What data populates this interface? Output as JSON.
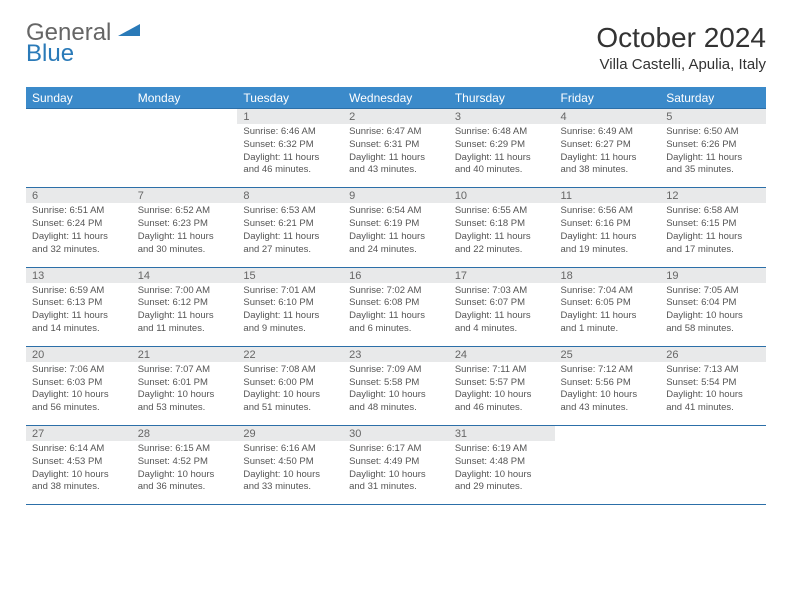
{
  "brand": {
    "general": "General",
    "blue": "Blue"
  },
  "title": "October 2024",
  "location": "Villa Castelli, Apulia, Italy",
  "colors": {
    "header_bg": "#3b8aca",
    "header_text": "#ffffff",
    "rule": "#2c6fa8",
    "daynum_bg": "#e8e9ea",
    "text": "#555555",
    "logo_blue": "#2a7ab8",
    "logo_gray": "#666666",
    "background": "#ffffff"
  },
  "typography": {
    "title_fontsize": 28,
    "location_fontsize": 15,
    "dayheader_fontsize": 12,
    "daynum_fontsize": 11,
    "cell_fontsize": 9.5
  },
  "day_names": [
    "Sunday",
    "Monday",
    "Tuesday",
    "Wednesday",
    "Thursday",
    "Friday",
    "Saturday"
  ],
  "weeks": [
    [
      null,
      null,
      {
        "n": "1",
        "sr": "6:46 AM",
        "ss": "6:32 PM",
        "dl": "11 hours and 46 minutes."
      },
      {
        "n": "2",
        "sr": "6:47 AM",
        "ss": "6:31 PM",
        "dl": "11 hours and 43 minutes."
      },
      {
        "n": "3",
        "sr": "6:48 AM",
        "ss": "6:29 PM",
        "dl": "11 hours and 40 minutes."
      },
      {
        "n": "4",
        "sr": "6:49 AM",
        "ss": "6:27 PM",
        "dl": "11 hours and 38 minutes."
      },
      {
        "n": "5",
        "sr": "6:50 AM",
        "ss": "6:26 PM",
        "dl": "11 hours and 35 minutes."
      }
    ],
    [
      {
        "n": "6",
        "sr": "6:51 AM",
        "ss": "6:24 PM",
        "dl": "11 hours and 32 minutes."
      },
      {
        "n": "7",
        "sr": "6:52 AM",
        "ss": "6:23 PM",
        "dl": "11 hours and 30 minutes."
      },
      {
        "n": "8",
        "sr": "6:53 AM",
        "ss": "6:21 PM",
        "dl": "11 hours and 27 minutes."
      },
      {
        "n": "9",
        "sr": "6:54 AM",
        "ss": "6:19 PM",
        "dl": "11 hours and 24 minutes."
      },
      {
        "n": "10",
        "sr": "6:55 AM",
        "ss": "6:18 PM",
        "dl": "11 hours and 22 minutes."
      },
      {
        "n": "11",
        "sr": "6:56 AM",
        "ss": "6:16 PM",
        "dl": "11 hours and 19 minutes."
      },
      {
        "n": "12",
        "sr": "6:58 AM",
        "ss": "6:15 PM",
        "dl": "11 hours and 17 minutes."
      }
    ],
    [
      {
        "n": "13",
        "sr": "6:59 AM",
        "ss": "6:13 PM",
        "dl": "11 hours and 14 minutes."
      },
      {
        "n": "14",
        "sr": "7:00 AM",
        "ss": "6:12 PM",
        "dl": "11 hours and 11 minutes."
      },
      {
        "n": "15",
        "sr": "7:01 AM",
        "ss": "6:10 PM",
        "dl": "11 hours and 9 minutes."
      },
      {
        "n": "16",
        "sr": "7:02 AM",
        "ss": "6:08 PM",
        "dl": "11 hours and 6 minutes."
      },
      {
        "n": "17",
        "sr": "7:03 AM",
        "ss": "6:07 PM",
        "dl": "11 hours and 4 minutes."
      },
      {
        "n": "18",
        "sr": "7:04 AM",
        "ss": "6:05 PM",
        "dl": "11 hours and 1 minute."
      },
      {
        "n": "19",
        "sr": "7:05 AM",
        "ss": "6:04 PM",
        "dl": "10 hours and 58 minutes."
      }
    ],
    [
      {
        "n": "20",
        "sr": "7:06 AM",
        "ss": "6:03 PM",
        "dl": "10 hours and 56 minutes."
      },
      {
        "n": "21",
        "sr": "7:07 AM",
        "ss": "6:01 PM",
        "dl": "10 hours and 53 minutes."
      },
      {
        "n": "22",
        "sr": "7:08 AM",
        "ss": "6:00 PM",
        "dl": "10 hours and 51 minutes."
      },
      {
        "n": "23",
        "sr": "7:09 AM",
        "ss": "5:58 PM",
        "dl": "10 hours and 48 minutes."
      },
      {
        "n": "24",
        "sr": "7:11 AM",
        "ss": "5:57 PM",
        "dl": "10 hours and 46 minutes."
      },
      {
        "n": "25",
        "sr": "7:12 AM",
        "ss": "5:56 PM",
        "dl": "10 hours and 43 minutes."
      },
      {
        "n": "26",
        "sr": "7:13 AM",
        "ss": "5:54 PM",
        "dl": "10 hours and 41 minutes."
      }
    ],
    [
      {
        "n": "27",
        "sr": "6:14 AM",
        "ss": "4:53 PM",
        "dl": "10 hours and 38 minutes."
      },
      {
        "n": "28",
        "sr": "6:15 AM",
        "ss": "4:52 PM",
        "dl": "10 hours and 36 minutes."
      },
      {
        "n": "29",
        "sr": "6:16 AM",
        "ss": "4:50 PM",
        "dl": "10 hours and 33 minutes."
      },
      {
        "n": "30",
        "sr": "6:17 AM",
        "ss": "4:49 PM",
        "dl": "10 hours and 31 minutes."
      },
      {
        "n": "31",
        "sr": "6:19 AM",
        "ss": "4:48 PM",
        "dl": "10 hours and 29 minutes."
      },
      null,
      null
    ]
  ],
  "labels": {
    "sunrise": "Sunrise:",
    "sunset": "Sunset:",
    "daylight": "Daylight:"
  }
}
